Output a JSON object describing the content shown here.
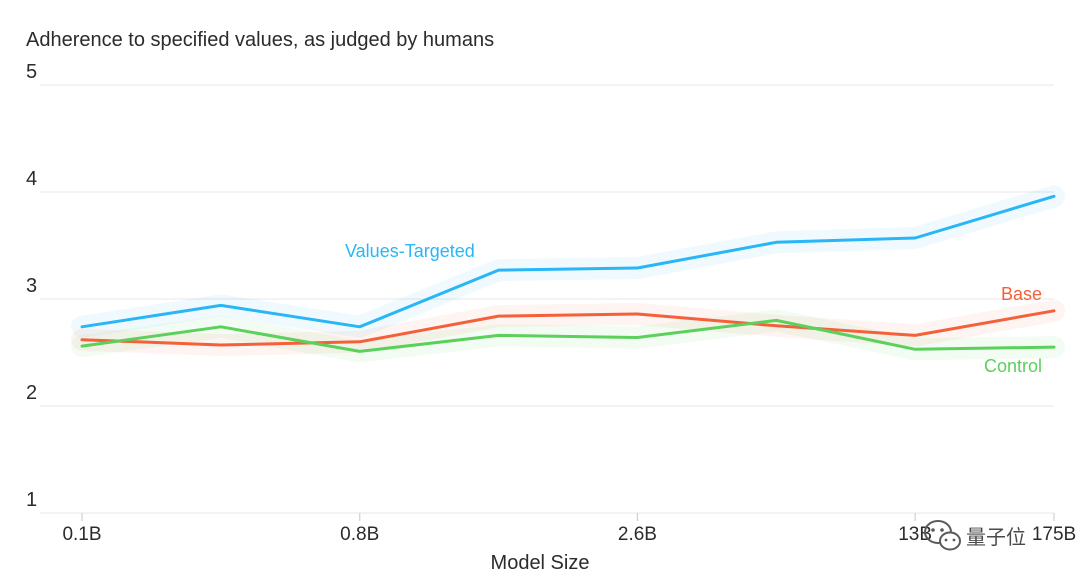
{
  "chart_data": {
    "type": "line",
    "title": "Adherence to specified values, as judged by humans",
    "xlabel": "Model Size",
    "ylabel": "",
    "ylim": [
      1,
      5
    ],
    "yticks": [
      1,
      2,
      3,
      4,
      5
    ],
    "grid": true,
    "x_tick_labels": [
      "0.1B",
      "0.8B",
      "2.6B",
      "13B",
      "175B"
    ],
    "x_positions": [
      0,
      1,
      2,
      3,
      4,
      5,
      6,
      7
    ],
    "x_tick_positions": [
      0,
      2,
      4,
      6,
      7
    ],
    "xlim": [
      0,
      7
    ],
    "series": [
      {
        "name": "Values-Targeted",
        "color": "#29b6f6",
        "values": [
          2.74,
          2.94,
          2.74,
          3.27,
          3.29,
          3.53,
          3.57,
          3.96
        ]
      },
      {
        "name": "Base",
        "color": "#f4603a",
        "values": [
          2.62,
          2.57,
          2.6,
          2.84,
          2.86,
          2.75,
          2.66,
          2.89
        ]
      },
      {
        "name": "Control",
        "color": "#5bd05b",
        "values": [
          2.56,
          2.74,
          2.51,
          2.66,
          2.64,
          2.8,
          2.53,
          2.55
        ]
      }
    ]
  },
  "watermark": {
    "text": "量子位"
  }
}
